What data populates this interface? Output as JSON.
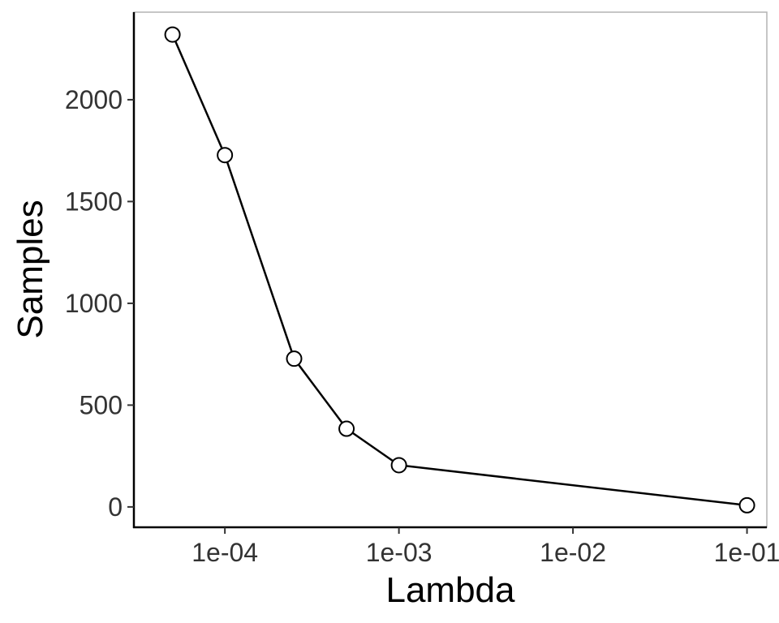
{
  "chart_data": {
    "type": "line",
    "xlabel": "Lambda",
    "ylabel": "Samples",
    "x_scale": "log10",
    "xlim": [
      3e-05,
      0.13
    ],
    "ylim": [
      -100,
      2430
    ],
    "x_ticks": [
      {
        "value": 0.0001,
        "label": "1e-04"
      },
      {
        "value": 0.001,
        "label": "1e-03"
      },
      {
        "value": 0.01,
        "label": "1e-02"
      },
      {
        "value": 0.1,
        "label": "1e-01"
      }
    ],
    "y_ticks": [
      {
        "value": 0,
        "label": "0"
      },
      {
        "value": 500,
        "label": "500"
      },
      {
        "value": 1000,
        "label": "1000"
      },
      {
        "value": 1500,
        "label": "1500"
      },
      {
        "value": 2000,
        "label": "2000"
      }
    ],
    "grid": false,
    "series": [
      {
        "x": [
          5e-05,
          0.0001,
          0.00025,
          0.0005,
          0.001,
          0.1
        ],
        "y": [
          2320,
          1728,
          728,
          384,
          205,
          8
        ]
      }
    ],
    "colors": {
      "line": "#000000",
      "marker_fill": "#ffffff",
      "marker_stroke": "#000000",
      "panel_border": "#b3b3b3"
    }
  }
}
